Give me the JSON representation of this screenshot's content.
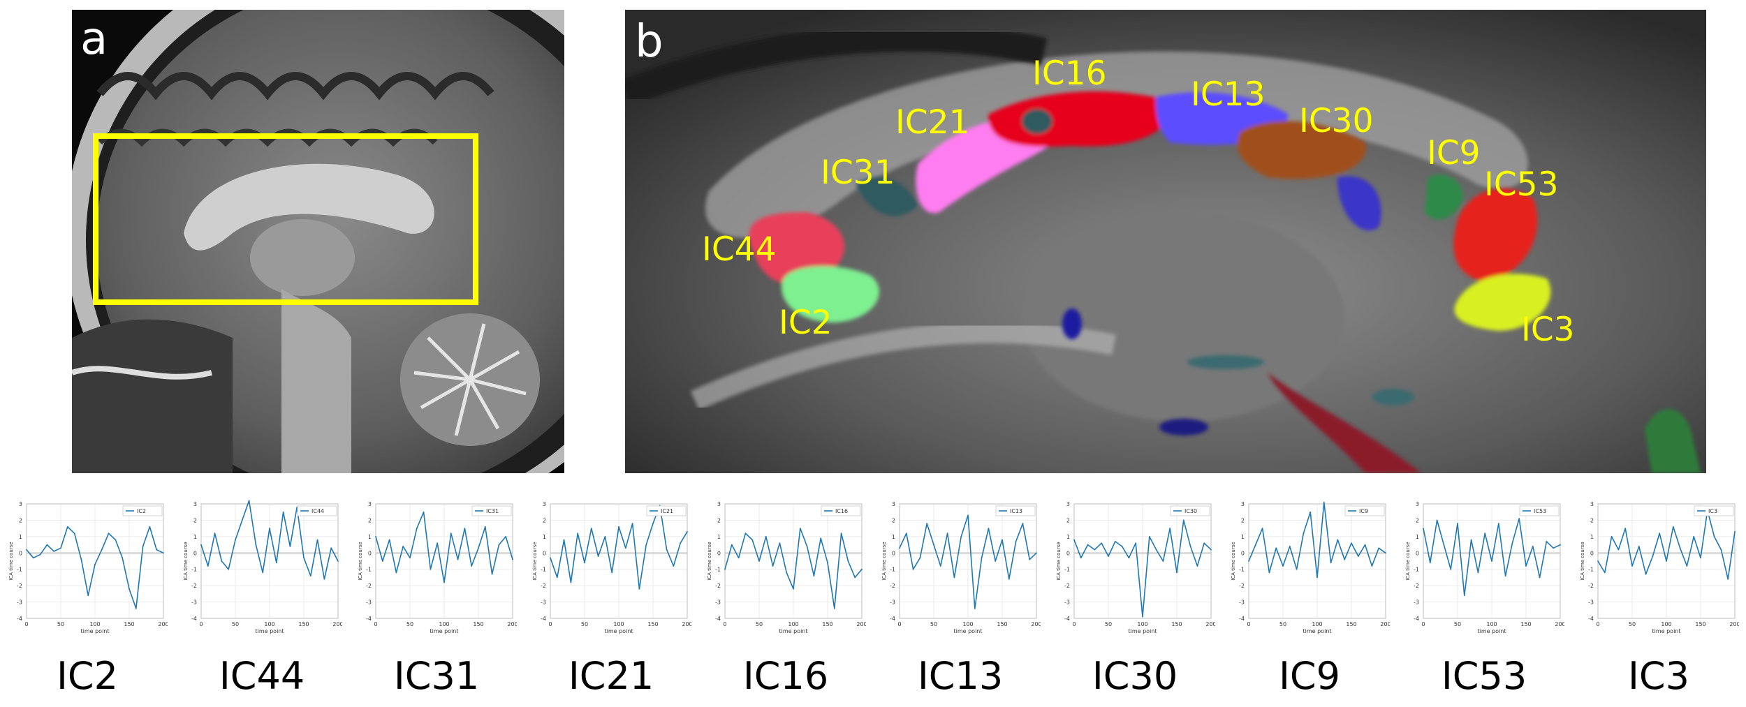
{
  "panel_a": {
    "letter": "a"
  },
  "panel_b": {
    "letter": "b",
    "labels": [
      "IC16",
      "IC13",
      "IC21",
      "IC30",
      "IC31",
      "IC9",
      "IC53",
      "IC44",
      "IC2",
      "IC3"
    ]
  },
  "colors": {
    "label": "#ffff00",
    "roi_box": "#ffff00",
    "trace": "#1f77b4"
  },
  "chart_data": [
    {
      "type": "line",
      "legend": "IC2",
      "caption": "IC2",
      "xlabel": "time point",
      "ylabel": "ICA time course",
      "ylim": [
        -4,
        3
      ],
      "xlim": [
        0,
        200
      ],
      "xticks": [
        0,
        50,
        100,
        150,
        200
      ],
      "yticks": [
        3,
        2,
        1,
        0,
        -1,
        -2,
        -3,
        -4
      ],
      "grid": true,
      "legend_position": "top-right",
      "x": [
        0,
        10,
        20,
        30,
        40,
        50,
        60,
        70,
        80,
        90,
        100,
        110,
        120,
        130,
        140,
        150,
        160,
        170,
        180,
        190,
        200
      ],
      "y": [
        0.2,
        -0.3,
        -0.1,
        0.5,
        0.1,
        0.3,
        1.6,
        1.2,
        -0.4,
        -2.6,
        -0.7,
        0.2,
        1.2,
        0.8,
        -0.3,
        -2.2,
        -3.4,
        0.4,
        1.6,
        0.2,
        0
      ]
    },
    {
      "type": "line",
      "legend": "IC44",
      "caption": "IC44",
      "xlabel": "time point",
      "ylabel": "ICA time course",
      "ylim": [
        -4,
        3
      ],
      "xlim": [
        0,
        200
      ],
      "xticks": [
        0,
        50,
        100,
        150,
        200
      ],
      "yticks": [
        3,
        2,
        1,
        0,
        -1,
        -2,
        -3,
        -4
      ],
      "grid": true,
      "legend_position": "top-right",
      "x": [
        0,
        10,
        20,
        30,
        40,
        50,
        60,
        70,
        80,
        90,
        100,
        110,
        120,
        130,
        140,
        150,
        160,
        170,
        180,
        190,
        200
      ],
      "y": [
        0.5,
        -0.8,
        1.2,
        -0.5,
        -1.0,
        0.8,
        2.0,
        3.2,
        0.5,
        -1.2,
        1.5,
        -0.6,
        2.5,
        0.4,
        2.8,
        -0.3,
        -1.4,
        0.8,
        -1.6,
        0.3,
        -0.5
      ]
    },
    {
      "type": "line",
      "legend": "IC31",
      "caption": "IC31",
      "xlabel": "time point",
      "ylabel": "ICA time course",
      "ylim": [
        -4,
        3
      ],
      "xlim": [
        0,
        200
      ],
      "xticks": [
        0,
        50,
        100,
        150,
        200
      ],
      "yticks": [
        3,
        2,
        1,
        0,
        -1,
        -2,
        -3,
        -4
      ],
      "grid": true,
      "legend_position": "top-right",
      "x": [
        0,
        10,
        20,
        30,
        40,
        50,
        60,
        70,
        80,
        90,
        100,
        110,
        120,
        130,
        140,
        150,
        160,
        170,
        180,
        190,
        200
      ],
      "y": [
        1.0,
        -0.5,
        0.8,
        -1.2,
        0.4,
        -0.3,
        1.5,
        2.5,
        -1.0,
        0.6,
        -1.8,
        1.2,
        -0.4,
        1.5,
        -0.8,
        0.3,
        1.6,
        -1.3,
        0.5,
        1.0,
        -0.4
      ]
    },
    {
      "type": "line",
      "legend": "IC21",
      "caption": "IC21",
      "xlabel": "time point",
      "ylabel": "ICA time course",
      "ylim": [
        -4,
        3
      ],
      "xlim": [
        0,
        200
      ],
      "xticks": [
        0,
        50,
        100,
        150,
        200
      ],
      "yticks": [
        3,
        2,
        1,
        0,
        -1,
        -2,
        -3,
        -4
      ],
      "grid": true,
      "legend_position": "top-right",
      "x": [
        0,
        10,
        20,
        30,
        40,
        50,
        60,
        70,
        80,
        90,
        100,
        110,
        120,
        130,
        140,
        150,
        160,
        170,
        180,
        190,
        200
      ],
      "y": [
        -0.3,
        -1.5,
        0.8,
        -1.8,
        1.2,
        -0.6,
        1.5,
        -0.2,
        1.0,
        -1.2,
        1.6,
        0.3,
        1.8,
        -2.2,
        0.5,
        1.8,
        2.9,
        0.2,
        -0.8,
        0.6,
        1.3
      ]
    },
    {
      "type": "line",
      "legend": "IC16",
      "caption": "IC16",
      "xlabel": "time point",
      "ylabel": "ICA time course",
      "ylim": [
        -4,
        3
      ],
      "xlim": [
        0,
        200
      ],
      "xticks": [
        0,
        50,
        100,
        150,
        200
      ],
      "yticks": [
        3,
        2,
        1,
        0,
        -1,
        -2,
        -3,
        -4
      ],
      "grid": true,
      "legend_position": "top-right",
      "x": [
        0,
        10,
        20,
        30,
        40,
        50,
        60,
        70,
        80,
        90,
        100,
        110,
        120,
        130,
        140,
        150,
        160,
        170,
        180,
        190,
        200
      ],
      "y": [
        -1.0,
        0.5,
        -0.3,
        1.2,
        0.8,
        -0.5,
        1.0,
        -0.8,
        0.6,
        -1.2,
        -2.2,
        1.5,
        0.4,
        -1.4,
        0.9,
        -0.6,
        -3.4,
        1.2,
        -0.5,
        -1.5,
        -1.0
      ]
    },
    {
      "type": "line",
      "legend": "IC13",
      "caption": "IC13",
      "xlabel": "time point",
      "ylabel": "ICA time course",
      "ylim": [
        -4,
        3
      ],
      "xlim": [
        0,
        200
      ],
      "xticks": [
        0,
        50,
        100,
        150,
        200
      ],
      "yticks": [
        3,
        2,
        1,
        0,
        -1,
        -2,
        -3,
        -4
      ],
      "grid": true,
      "legend_position": "top-right",
      "x": [
        0,
        10,
        20,
        30,
        40,
        50,
        60,
        70,
        80,
        90,
        100,
        110,
        120,
        130,
        140,
        150,
        160,
        170,
        180,
        190,
        200
      ],
      "y": [
        0.3,
        1.2,
        -1.0,
        -0.3,
        1.8,
        0.5,
        -0.8,
        1.2,
        -1.5,
        1.0,
        2.3,
        -3.4,
        -0.3,
        1.5,
        -0.5,
        0.8,
        -1.6,
        0.7,
        1.8,
        -0.4,
        0
      ]
    },
    {
      "type": "line",
      "legend": "IC30",
      "caption": "IC30",
      "xlabel": "time point",
      "ylabel": "ICA time course",
      "ylim": [
        -4,
        3
      ],
      "xlim": [
        0,
        200
      ],
      "xticks": [
        0,
        50,
        100,
        150,
        200
      ],
      "yticks": [
        3,
        2,
        1,
        0,
        -1,
        -2,
        -3,
        -4
      ],
      "grid": true,
      "legend_position": "top-right",
      "x": [
        0,
        10,
        20,
        30,
        40,
        50,
        60,
        70,
        80,
        90,
        100,
        110,
        120,
        130,
        140,
        150,
        160,
        170,
        180,
        190,
        200
      ],
      "y": [
        0.8,
        -0.3,
        0.5,
        0.2,
        0.6,
        -0.2,
        0.7,
        0.4,
        -0.3,
        0.6,
        -3.9,
        1.0,
        0.2,
        -0.5,
        1.5,
        -1.2,
        2.0,
        0.4,
        -0.8,
        0.6,
        0.2
      ]
    },
    {
      "type": "line",
      "legend": "IC9",
      "caption": "IC9",
      "xlabel": "time point",
      "ylabel": "ICA time course",
      "ylim": [
        -4,
        3
      ],
      "xlim": [
        0,
        200
      ],
      "xticks": [
        0,
        50,
        100,
        150,
        200
      ],
      "yticks": [
        3,
        2,
        1,
        0,
        -1,
        -2,
        -3,
        -4
      ],
      "grid": true,
      "legend_position": "top-right",
      "x": [
        0,
        10,
        20,
        30,
        40,
        50,
        60,
        70,
        80,
        90,
        100,
        110,
        120,
        130,
        140,
        150,
        160,
        170,
        180,
        190,
        200
      ],
      "y": [
        -0.5,
        0.5,
        1.5,
        -1.2,
        0.3,
        -0.8,
        0.4,
        -1.0,
        1.2,
        2.5,
        -1.5,
        3.1,
        -0.6,
        0.8,
        -0.4,
        0.6,
        -0.2,
        0.5,
        -0.8,
        0.3,
        0
      ]
    },
    {
      "type": "line",
      "legend": "IC53",
      "caption": "IC53",
      "xlabel": "time point",
      "ylabel": "ICA time course",
      "ylim": [
        -4,
        3
      ],
      "xlim": [
        0,
        200
      ],
      "xticks": [
        0,
        50,
        100,
        150,
        200
      ],
      "yticks": [
        3,
        2,
        1,
        0,
        -1,
        -2,
        -3,
        -4
      ],
      "grid": true,
      "legend_position": "top-right",
      "x": [
        0,
        10,
        20,
        30,
        40,
        50,
        60,
        70,
        80,
        90,
        100,
        110,
        120,
        130,
        140,
        150,
        160,
        170,
        180,
        190,
        200
      ],
      "y": [
        1.5,
        -0.6,
        2.0,
        0.5,
        -1.0,
        1.8,
        -2.6,
        0.8,
        -1.2,
        1.2,
        -0.5,
        1.8,
        -1.4,
        0.6,
        2.1,
        -0.8,
        0.4,
        -1.5,
        0.7,
        0.3,
        0.5
      ]
    },
    {
      "type": "line",
      "legend": "IC3",
      "caption": "IC3",
      "xlabel": "time point",
      "ylabel": "ICA time course",
      "ylim": [
        -4,
        3
      ],
      "xlim": [
        0,
        200
      ],
      "xticks": [
        0,
        50,
        100,
        150,
        200
      ],
      "yticks": [
        3,
        2,
        1,
        0,
        -1,
        -2,
        -3,
        -4
      ],
      "grid": true,
      "legend_position": "top-right",
      "x": [
        0,
        10,
        20,
        30,
        40,
        50,
        60,
        70,
        80,
        90,
        100,
        110,
        120,
        130,
        140,
        150,
        160,
        170,
        180,
        190,
        200
      ],
      "y": [
        -0.5,
        -1.2,
        1.0,
        0.2,
        1.5,
        -0.8,
        0.4,
        -1.3,
        -0.2,
        1.2,
        -0.5,
        1.6,
        0.3,
        -0.8,
        1.0,
        -0.3,
        2.6,
        1.0,
        0.2,
        -1.6,
        1.3
      ]
    }
  ]
}
